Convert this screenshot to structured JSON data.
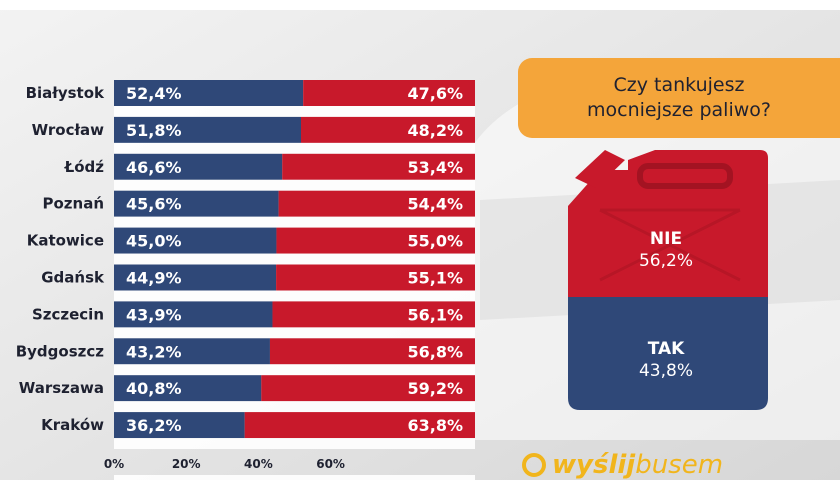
{
  "chart_data": {
    "type": "bar",
    "orientation": "horizontal",
    "stacked": true,
    "categories": [
      "Białystok",
      "Wrocław",
      "Łódź",
      "Poznań",
      "Katowice",
      "Gdańsk",
      "Szczecin",
      "Bydgoszcz",
      "Warszawa",
      "Kraków",
      ""
    ],
    "series": [
      {
        "name": "",
        "color": "#2f4878",
        "values": [
          52.4,
          51.8,
          46.6,
          45.6,
          45.0,
          44.9,
          43.9,
          43.2,
          40.8,
          36.2,
          null
        ],
        "labels": [
          "52,4%",
          "51,8%",
          "46,6%",
          "45,6%",
          "45,0%",
          "44,9%",
          "43,9%",
          "43,2%",
          "40,8%",
          "36,2%",
          ""
        ]
      },
      {
        "name": "",
        "color": "#c8192b",
        "values": [
          47.6,
          48.2,
          53.4,
          54.4,
          55.0,
          55.1,
          56.1,
          56.8,
          59.2,
          63.8,
          null
        ],
        "labels": [
          "47,6%",
          "48,2%",
          "53,4%",
          "54,4%",
          "55,0%",
          "55,1%",
          "56,1%",
          "56,8%",
          "59,2%",
          "63,8%",
          ""
        ]
      }
    ],
    "x_ticks": [
      "0%",
      "20%",
      "40%",
      "60%"
    ],
    "xlim": [
      0,
      100
    ]
  },
  "survey": {
    "question": "Czy tankujesz\nmocniejsze paliwo?",
    "no_label": "NIE",
    "no_value": "56,2%",
    "no_share": 56.2,
    "yes_label": "TAK",
    "yes_value": "43,8%",
    "yes_share": 43.8
  },
  "brand": {
    "part1": "wyślij",
    "part2": "busem"
  },
  "colors": {
    "blue": "#2f4878",
    "red": "#c8192b",
    "orange": "#f4a53a",
    "logo": "#f1b51c"
  }
}
